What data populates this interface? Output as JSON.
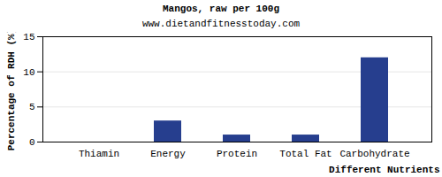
{
  "chart_data": {
    "type": "bar",
    "title": "Mangos, raw per 100g",
    "subtitle": "www.dietandfitnesstoday.com",
    "x_label": "Different Nutrients",
    "y_label": "Percentage of RDH (%)",
    "categories": [
      "Thiamin",
      "Energy",
      "Protein",
      "Total Fat",
      "Carbohydrate"
    ],
    "values": [
      0,
      3,
      1,
      1,
      12
    ],
    "color": "#263e8e",
    "ylim": [
      0,
      15
    ],
    "yticks": [
      0,
      5,
      10,
      15
    ],
    "grid": true
  }
}
